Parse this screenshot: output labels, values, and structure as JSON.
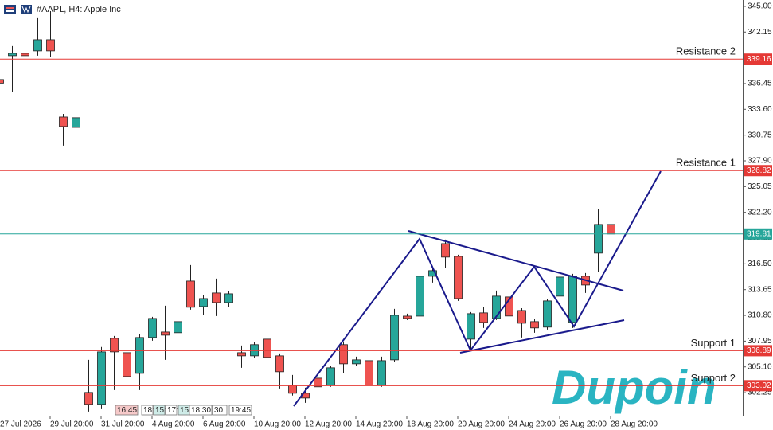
{
  "chart_data": {
    "type": "candlestick",
    "title": "#AAPL, H4:  Apple Inc",
    "watermark": "Dupoin",
    "up_color": "#26a69a",
    "down_color": "#ef5350",
    "categories": [
      "27 Jul 2026",
      null,
      null,
      null,
      "29 Jul 20:00",
      null,
      null,
      null,
      "31 Jul 20:00",
      null,
      null,
      null,
      "4 Aug 20:00",
      null,
      null,
      null,
      "6 Aug 20:00",
      null,
      null,
      null,
      "10 Aug 20:00",
      null,
      null,
      null,
      "12 Aug 20:00",
      null,
      null,
      null,
      "14 Aug 20:00",
      null,
      null,
      null,
      "18 Aug 20:00",
      null,
      null,
      null,
      "20 Aug 20:00",
      null,
      null,
      null,
      "24 Aug 20:00",
      null,
      null,
      null,
      "26 Aug 20:00",
      null,
      null,
      null,
      "28 Aug 20:00"
    ],
    "open": [
      336.9,
      339.54,
      339.8,
      340.07,
      341.3,
      332.75,
      331.6,
      302.27,
      300.95,
      308.26,
      306.67,
      304.38,
      308.35,
      308.96,
      308.88,
      314.6,
      311.78,
      313.28,
      312.22,
      306.67,
      306.32,
      308.17,
      306.32,
      303.06,
      302.18,
      303.85,
      303.06,
      307.56,
      305.44,
      305.79,
      303.06,
      305.88,
      310.72,
      310.72,
      315.13,
      318.74,
      317.33,
      308.17,
      311.08,
      310.46,
      312.84,
      311.34,
      310.11,
      309.5,
      312.93,
      310.02,
      315.13,
      317.69,
      320.86
    ],
    "high": [
      337.0,
      340.6,
      340.24,
      343.77,
      344.47,
      333.1,
      334.07,
      305.88,
      307.3,
      308.52,
      307.2,
      308.7,
      310.64,
      311.87,
      310.64,
      316.37,
      313.1,
      314.87,
      313.46,
      307.47,
      307.82,
      308.35,
      306.59,
      304.21,
      302.8,
      304.3,
      305.18,
      307.82,
      306.23,
      306.41,
      306.23,
      311.52,
      310.99,
      319.27,
      316.19,
      319.19,
      317.51,
      311.17,
      311.7,
      313.55,
      313.1,
      311.6,
      310.38,
      312.58,
      315.31,
      315.4,
      315.49,
      322.53,
      321.04
    ],
    "low": [
      336.4,
      335.57,
      338.4,
      339.54,
      339.36,
      329.58,
      331.6,
      300.15,
      300.5,
      302.53,
      303.77,
      302.53,
      308.0,
      305.88,
      308.17,
      311.43,
      310.81,
      310.73,
      311.7,
      305.0,
      306.06,
      305.88,
      302.71,
      301.92,
      301.12,
      302.53,
      302.89,
      304.38,
      305.18,
      302.89,
      302.89,
      305.62,
      310.29,
      310.46,
      314.43,
      316.01,
      312.4,
      306.94,
      309.41,
      310.29,
      310.29,
      308.35,
      308.88,
      309.23,
      312.66,
      309.41,
      313.28,
      315.57,
      319.0
    ],
    "close": [
      336.5,
      339.8,
      339.54,
      341.3,
      340.07,
      331.7,
      332.67,
      300.95,
      306.76,
      306.76,
      304.03,
      308.35,
      310.46,
      308.61,
      310.11,
      311.7,
      312.66,
      312.22,
      313.19,
      306.32,
      307.56,
      306.15,
      304.56,
      302.18,
      301.65,
      302.89,
      305.0,
      305.44,
      305.88,
      303.06,
      305.79,
      310.81,
      310.46,
      315.13,
      315.75,
      317.25,
      312.66,
      310.99,
      310.02,
      312.93,
      310.73,
      309.93,
      309.41,
      312.4,
      315.04,
      315.13,
      314.16,
      320.86,
      319.81
    ],
    "ylim": [
      299.7,
      345.7
    ],
    "yticks": [
      {
        "value": 345,
        "label": "345.00"
      },
      342.15,
      {
        "value": 339.3,
        "label": "339.30"
      },
      336.45,
      {
        "value": 333.6,
        "label": "333.60"
      },
      330.75,
      {
        "value": 327.9,
        "label": "327.90"
      },
      325.05,
      {
        "value": 322.2,
        "label": "322.20"
      },
      319.35,
      {
        "value": 316.5,
        "label": "316.50"
      },
      313.65,
      {
        "value": 310.8,
        "label": "310.80"
      },
      307.95,
      {
        "value": 305.1,
        "label": "305.10"
      },
      302.25
    ],
    "levels": [
      {
        "label": "Resistance 2",
        "value": 339.16,
        "color": "#e53935"
      },
      {
        "label": "Resistance 1",
        "value": 326.82,
        "color": "#e53935"
      },
      {
        "value": 319.81,
        "color": "#26a69a"
      },
      {
        "label": "Support 1",
        "value": 306.89,
        "color": "#e53935"
      },
      {
        "label": "Support 2",
        "value": 303.02,
        "color": "#e53935"
      }
    ],
    "time_labels": [
      "16:45",
      "18:",
      "15:",
      "17:",
      "15:",
      "18:30",
      "30",
      "19:45"
    ],
    "grid": false
  }
}
